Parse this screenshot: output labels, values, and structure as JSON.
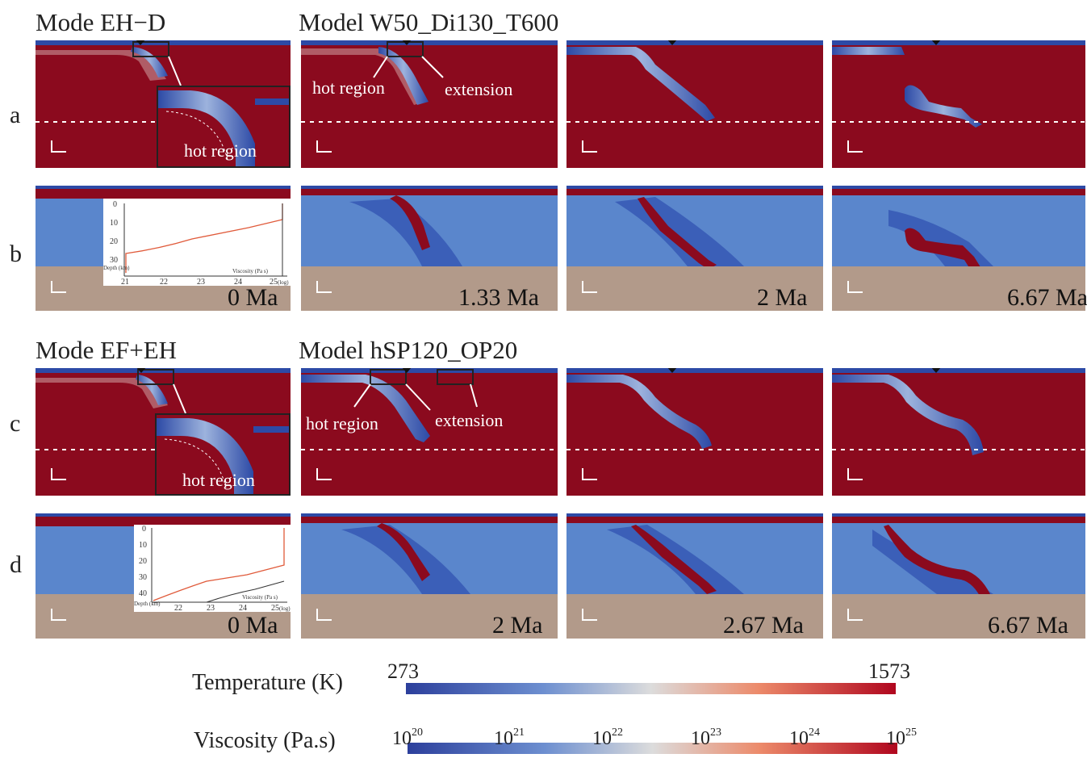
{
  "headers": {
    "mode_top": "Mode EH−D",
    "model_top": "Model W50_Di130_T600",
    "mode_bottom": "Mode EF+EH",
    "model_bottom": "Model hSP120_OP20"
  },
  "row_labels": [
    "a",
    "b",
    "c",
    "d"
  ],
  "annotations": {
    "hot_region": "hot region",
    "extension": "extension"
  },
  "times_top": [
    "0 Ma",
    "1.33 Ma",
    "2 Ma",
    "6.67 Ma"
  ],
  "times_bottom": [
    "0 Ma",
    "2 Ma",
    "2.67 Ma",
    "6.67 Ma"
  ],
  "inset_b": {
    "ylabel": "Depth (km)",
    "xlabel": "Viscosity (Pa s)",
    "xlabel_suffix": "(log)",
    "yticks": [
      "0",
      "10",
      "20",
      "30"
    ],
    "xticks": [
      "21",
      "22",
      "23",
      "24",
      "25"
    ]
  },
  "inset_d": {
    "ylabel": "Depth (km)",
    "xlabel": "Viscosity (Pa s)",
    "xlabel_suffix": "(log)",
    "yticks": [
      "0",
      "10",
      "20",
      "30",
      "40"
    ],
    "xticks": [
      "22",
      "23",
      "24",
      "25"
    ]
  },
  "colorbars": {
    "temperature": {
      "label": "Temperature (K)",
      "min": "273",
      "max": "1573"
    },
    "viscosity": {
      "label": "Viscosity (Pa.s)",
      "base": "10",
      "exponents": [
        "20",
        "21",
        "22",
        "23",
        "24",
        "25"
      ]
    }
  },
  "colors": {
    "hot": "#8b0a1e",
    "cold": "#3b5fb8",
    "mantle_visc": "#5a86cc",
    "lower": "#b29a8a"
  }
}
